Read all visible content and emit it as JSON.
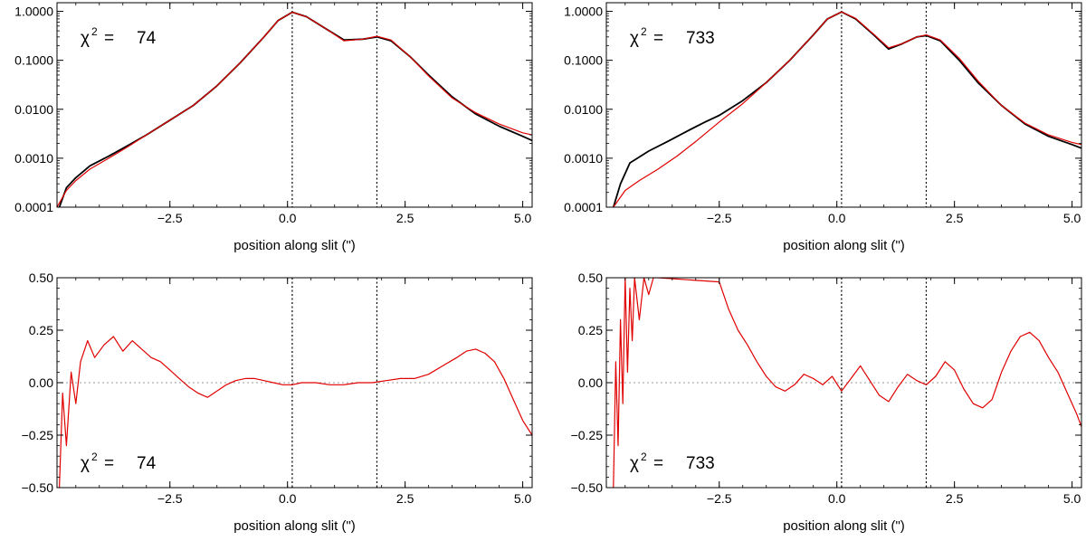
{
  "figure": {
    "colors": {
      "data": "#000000",
      "model": "#e00000",
      "residual": "#e00000",
      "axis": "#000000",
      "zero_line": "#9a9a9a"
    }
  },
  "chart_data": [
    {
      "id": "top-left",
      "type": "line",
      "y_scale": "log",
      "xlim": [
        -4.9,
        5.2
      ],
      "ylim": [
        0.0001,
        1.5
      ],
      "x_ticks": [
        -2.5,
        0.0,
        2.5,
        5.0
      ],
      "x_tick_labels": [
        "−2.5",
        "0.0",
        "2.5",
        "5.0"
      ],
      "y_ticks": [
        0.0001,
        0.001,
        0.01,
        0.1,
        1.0
      ],
      "y_tick_labels": [
        "0.0001",
        "0.0010",
        "0.0100",
        "0.1000",
        "1.0000"
      ],
      "xlabel": "position along slit (\")",
      "vlines": [
        0.1,
        1.9
      ],
      "annotation": {
        "symbol": "χ",
        "sup": "2",
        "eq": "=",
        "value": "74"
      },
      "series": [
        {
          "role": "data",
          "color": "#000000",
          "x": [
            -4.85,
            -4.7,
            -4.5,
            -4.2,
            -3.8,
            -3.4,
            -3.0,
            -2.5,
            -2.0,
            -1.5,
            -1.0,
            -0.5,
            -0.2,
            0.1,
            0.4,
            0.8,
            1.2,
            1.6,
            1.9,
            2.2,
            2.6,
            3.0,
            3.5,
            4.0,
            4.5,
            5.0,
            5.2
          ],
          "y": [
            0.0001,
            0.00025,
            0.0004,
            0.0007,
            0.0011,
            0.0018,
            0.003,
            0.006,
            0.012,
            0.03,
            0.09,
            0.3,
            0.65,
            0.96,
            0.78,
            0.45,
            0.26,
            0.27,
            0.3,
            0.25,
            0.12,
            0.05,
            0.018,
            0.008,
            0.0045,
            0.0028,
            0.0023
          ]
        },
        {
          "role": "model",
          "color": "#e00000",
          "x": [
            -4.9,
            -4.7,
            -4.5,
            -4.2,
            -3.8,
            -3.4,
            -3.0,
            -2.5,
            -2.0,
            -1.5,
            -1.0,
            -0.5,
            -0.2,
            0.1,
            0.4,
            0.8,
            1.2,
            1.6,
            1.9,
            2.2,
            2.6,
            3.0,
            3.5,
            4.0,
            4.5,
            5.0,
            5.2
          ],
          "y": [
            0.0001,
            0.00022,
            0.00035,
            0.0006,
            0.001,
            0.0017,
            0.003,
            0.006,
            0.012,
            0.03,
            0.09,
            0.3,
            0.65,
            0.96,
            0.78,
            0.45,
            0.25,
            0.27,
            0.31,
            0.26,
            0.12,
            0.048,
            0.017,
            0.0085,
            0.005,
            0.0033,
            0.003
          ]
        }
      ]
    },
    {
      "id": "top-right",
      "type": "line",
      "y_scale": "log",
      "xlim": [
        -4.9,
        5.2
      ],
      "ylim": [
        0.0001,
        1.5
      ],
      "x_ticks": [
        -2.5,
        0.0,
        2.5,
        5.0
      ],
      "x_tick_labels": [
        "−2.5",
        "0.0",
        "2.5",
        "5.0"
      ],
      "y_ticks": [
        0.0001,
        0.001,
        0.01,
        0.1,
        1.0
      ],
      "y_tick_labels": [
        "0.0001",
        "0.0010",
        "0.0100",
        "0.1000",
        "1.0000"
      ],
      "xlabel": "position along slit (\")",
      "vlines": [
        0.1,
        1.9
      ],
      "annotation": {
        "symbol": "χ",
        "sup": "2",
        "eq": "=",
        "value": "733"
      },
      "series": [
        {
          "role": "data",
          "color": "#000000",
          "x": [
            -4.75,
            -4.6,
            -4.4,
            -4.0,
            -3.6,
            -3.2,
            -2.8,
            -2.5,
            -2.0,
            -1.5,
            -1.0,
            -0.5,
            -0.2,
            0.1,
            0.4,
            0.8,
            1.1,
            1.4,
            1.7,
            1.9,
            2.2,
            2.6,
            3.0,
            3.5,
            4.0,
            4.5,
            5.0,
            5.2
          ],
          "y": [
            0.0001,
            0.0003,
            0.0008,
            0.0014,
            0.0022,
            0.0035,
            0.0055,
            0.0075,
            0.015,
            0.035,
            0.1,
            0.33,
            0.7,
            0.97,
            0.7,
            0.32,
            0.17,
            0.22,
            0.3,
            0.32,
            0.25,
            0.1,
            0.035,
            0.012,
            0.005,
            0.0028,
            0.0019,
            0.0016
          ]
        },
        {
          "role": "model",
          "color": "#e00000",
          "x": [
            -4.75,
            -4.5,
            -4.2,
            -3.8,
            -3.4,
            -3.0,
            -2.5,
            -2.0,
            -1.5,
            -1.0,
            -0.5,
            -0.2,
            0.1,
            0.4,
            0.8,
            1.1,
            1.4,
            1.7,
            1.9,
            2.2,
            2.6,
            3.0,
            3.5,
            4.0,
            4.5,
            5.0,
            5.2
          ],
          "y": [
            0.0001,
            0.00022,
            0.00035,
            0.0006,
            0.0011,
            0.0022,
            0.0055,
            0.013,
            0.035,
            0.1,
            0.33,
            0.7,
            0.97,
            0.72,
            0.33,
            0.18,
            0.22,
            0.3,
            0.33,
            0.26,
            0.11,
            0.038,
            0.012,
            0.0052,
            0.003,
            0.0021,
            0.0019
          ]
        }
      ]
    },
    {
      "id": "bottom-left",
      "type": "line",
      "y_scale": "linear",
      "xlim": [
        -4.9,
        5.2
      ],
      "ylim": [
        -0.5,
        0.5
      ],
      "x_ticks": [
        -2.5,
        0.0,
        2.5,
        5.0
      ],
      "x_tick_labels": [
        "−2.5",
        "0.0",
        "2.5",
        "5.0"
      ],
      "y_ticks": [
        -0.5,
        -0.25,
        0.0,
        0.25,
        0.5
      ],
      "y_tick_labels": [
        "−0.50",
        "−0.25",
        "0.00",
        "0.25",
        "0.50"
      ],
      "xlabel": "position along slit (\")",
      "vlines": [
        0.1,
        1.9
      ],
      "zero_line": true,
      "annotation": {
        "symbol": "χ",
        "sup": "2",
        "eq": "=",
        "value": "74"
      },
      "series": [
        {
          "role": "residual",
          "color": "#e00000",
          "x": [
            -4.85,
            -4.78,
            -4.7,
            -4.6,
            -4.5,
            -4.4,
            -4.25,
            -4.1,
            -3.9,
            -3.7,
            -3.5,
            -3.3,
            -3.1,
            -2.9,
            -2.7,
            -2.5,
            -2.3,
            -2.1,
            -1.9,
            -1.7,
            -1.5,
            -1.3,
            -1.1,
            -0.9,
            -0.7,
            -0.5,
            -0.3,
            -0.1,
            0.1,
            0.3,
            0.6,
            0.9,
            1.2,
            1.5,
            1.8,
            2.1,
            2.4,
            2.7,
            3.0,
            3.3,
            3.6,
            3.8,
            4.0,
            4.2,
            4.4,
            4.6,
            4.8,
            5.0,
            5.2
          ],
          "y": [
            -0.5,
            -0.05,
            -0.3,
            0.05,
            -0.1,
            0.1,
            0.2,
            0.12,
            0.18,
            0.22,
            0.15,
            0.2,
            0.16,
            0.12,
            0.1,
            0.06,
            0.02,
            -0.02,
            -0.05,
            -0.07,
            -0.04,
            -0.01,
            0.01,
            0.02,
            0.02,
            0.01,
            0.0,
            -0.01,
            -0.01,
            0.0,
            0.0,
            -0.01,
            -0.01,
            0.0,
            0.0,
            0.01,
            0.02,
            0.02,
            0.04,
            0.08,
            0.12,
            0.15,
            0.16,
            0.14,
            0.1,
            0.02,
            -0.08,
            -0.18,
            -0.25
          ]
        }
      ]
    },
    {
      "id": "bottom-right",
      "type": "line",
      "y_scale": "linear",
      "xlim": [
        -4.9,
        5.2
      ],
      "ylim": [
        -0.5,
        0.5
      ],
      "x_ticks": [
        -2.5,
        0.0,
        2.5,
        5.0
      ],
      "x_tick_labels": [
        "−2.5",
        "0.0",
        "2.5",
        "5.0"
      ],
      "y_ticks": [
        -0.5,
        -0.25,
        0.0,
        0.25,
        0.5
      ],
      "y_tick_labels": [
        "−0.50",
        "−0.25",
        "0.00",
        "0.25",
        "0.50"
      ],
      "xlabel": "position along slit (\")",
      "vlines": [
        0.1,
        1.9
      ],
      "zero_line": true,
      "annotation": {
        "symbol": "χ",
        "sup": "2",
        "eq": "=",
        "value": "733"
      },
      "series": [
        {
          "role": "residual",
          "color": "#e00000",
          "x": [
            -4.75,
            -4.7,
            -4.65,
            -4.6,
            -4.55,
            -4.5,
            -4.45,
            -4.4,
            -4.35,
            -4.3,
            -4.2,
            -4.1,
            -4.0,
            -3.9,
            -3.8,
            -2.5,
            -2.3,
            -2.1,
            -1.9,
            -1.7,
            -1.5,
            -1.3,
            -1.1,
            -0.9,
            -0.7,
            -0.5,
            -0.3,
            -0.1,
            0.1,
            0.3,
            0.5,
            0.7,
            0.9,
            1.1,
            1.3,
            1.5,
            1.7,
            1.9,
            2.1,
            2.3,
            2.5,
            2.7,
            2.9,
            3.1,
            3.3,
            3.5,
            3.7,
            3.9,
            4.1,
            4.3,
            4.5,
            4.7,
            4.9,
            5.1,
            5.2
          ],
          "y": [
            -0.5,
            0.1,
            -0.3,
            0.3,
            -0.1,
            0.5,
            0.05,
            0.45,
            0.2,
            0.5,
            0.3,
            0.5,
            0.42,
            0.5,
            0.5,
            0.48,
            0.35,
            0.25,
            0.18,
            0.1,
            0.03,
            -0.02,
            -0.04,
            -0.01,
            0.04,
            0.02,
            -0.01,
            0.03,
            -0.04,
            0.02,
            0.08,
            0.01,
            -0.06,
            -0.09,
            -0.02,
            0.04,
            0.01,
            -0.01,
            0.03,
            0.1,
            0.06,
            -0.03,
            -0.1,
            -0.12,
            -0.08,
            0.05,
            0.15,
            0.22,
            0.24,
            0.2,
            0.12,
            0.05,
            -0.05,
            -0.15,
            -0.21
          ]
        }
      ]
    }
  ]
}
